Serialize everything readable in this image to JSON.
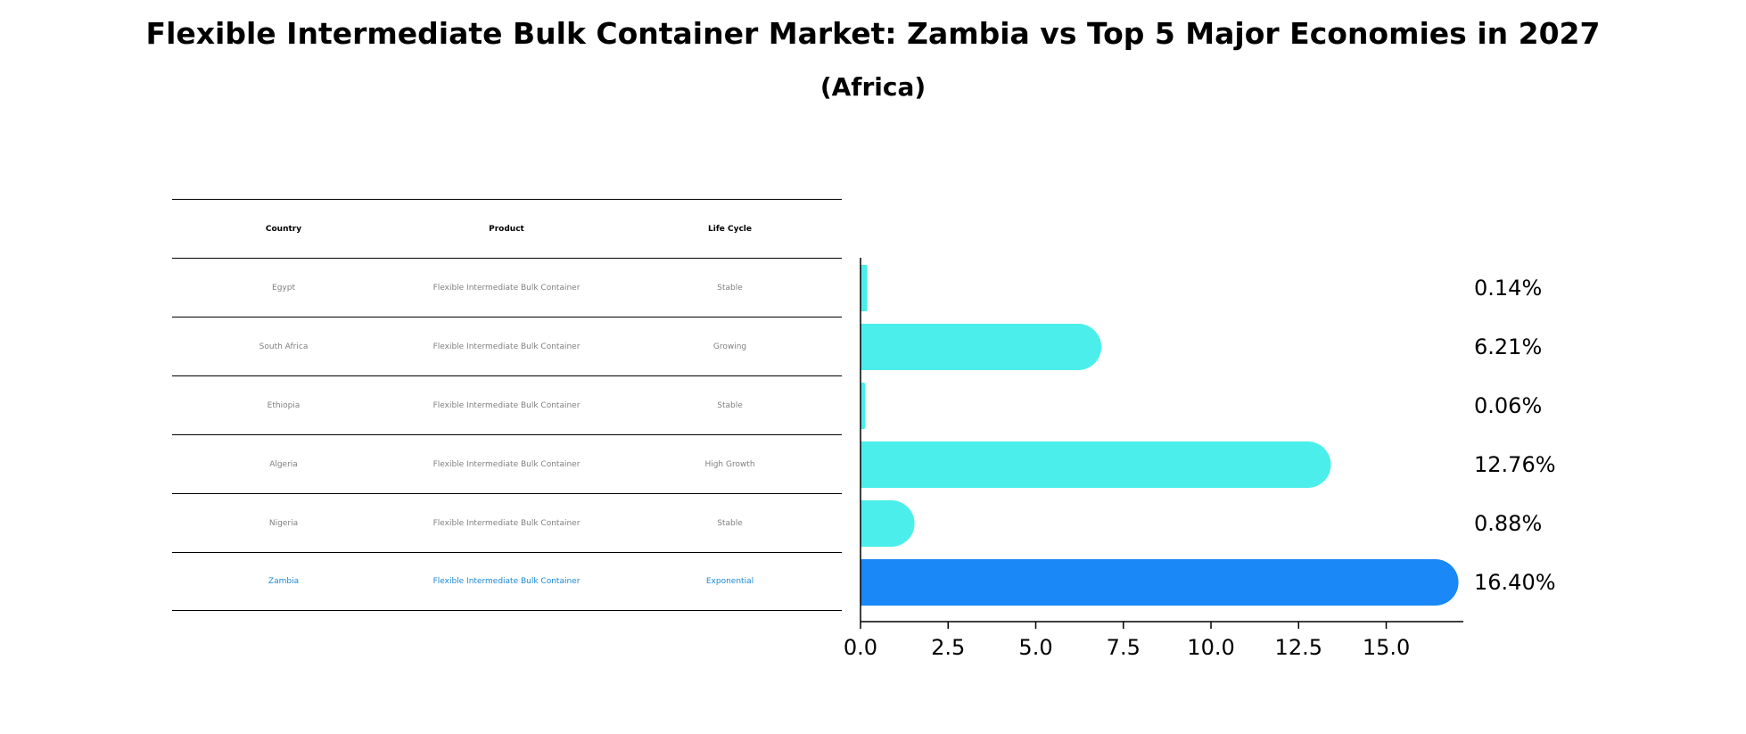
{
  "title": "Flexible Intermediate Bulk Container Market: Zambia vs Top 5 Major Economies in 2027",
  "subtitle": "(Africa)",
  "table": {
    "headers": [
      "Country",
      "Product",
      "Life Cycle"
    ],
    "rows": [
      {
        "country": "Egypt",
        "product": "Flexible Intermediate Bulk Container",
        "life_cycle": "Stable"
      },
      {
        "country": "South Africa",
        "product": "Flexible Intermediate Bulk Container",
        "life_cycle": "Growing"
      },
      {
        "country": "Ethiopia",
        "product": "Flexible Intermediate Bulk Container",
        "life_cycle": "Stable"
      },
      {
        "country": "Algeria",
        "product": "Flexible Intermediate Bulk Container",
        "life_cycle": "High Growth"
      },
      {
        "country": "Nigeria",
        "product": "Flexible Intermediate Bulk Container",
        "life_cycle": "Stable"
      },
      {
        "country": "Zambia",
        "product": "Flexible Intermediate Bulk Container",
        "life_cycle": "Exponential"
      }
    ]
  },
  "colors": {
    "bar": "#4beeea",
    "highlight_bar": "#1a88f7",
    "highlight_text": "#1a88d4",
    "table_text": "#808080"
  },
  "chart_data": {
    "type": "bar",
    "orientation": "horizontal",
    "title": "Flexible Intermediate Bulk Container Market: Zambia vs Top 5 Major Economies in 2027",
    "subtitle": "(Africa)",
    "categories": [
      "Egypt",
      "South Africa",
      "Ethiopia",
      "Algeria",
      "Nigeria",
      "Zambia"
    ],
    "values": [
      0.14,
      6.21,
      0.06,
      12.76,
      0.88,
      16.4
    ],
    "value_labels": [
      "0.14%",
      "6.21%",
      "0.06%",
      "12.76%",
      "0.88%",
      "16.40%"
    ],
    "highlight": "Zambia",
    "xlim": [
      0,
      17.2
    ],
    "xticks": [
      0.0,
      2.5,
      5.0,
      7.5,
      10.0,
      12.5,
      15.0
    ],
    "xtick_labels": [
      "0.0",
      "2.5",
      "5.0",
      "7.5",
      "10.0",
      "12.5",
      "15.0"
    ],
    "xlabel": "",
    "ylabel": "",
    "grid": false
  }
}
